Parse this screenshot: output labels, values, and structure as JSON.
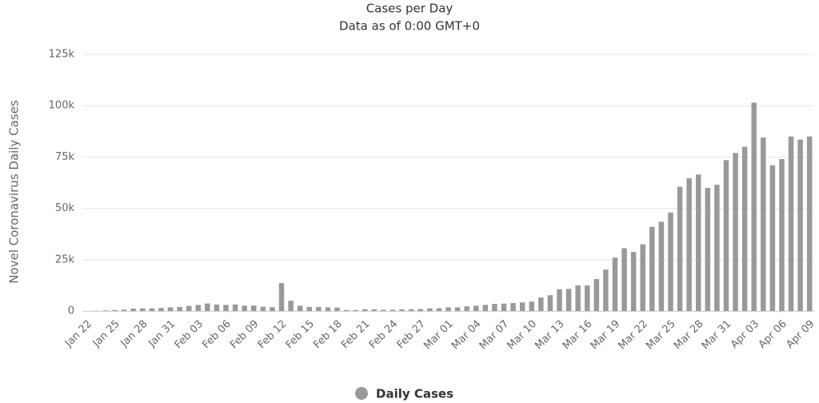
{
  "chart_data": {
    "type": "bar",
    "title": "Cases per Day",
    "subtitle": "Data as of 0:00 GMT+0",
    "y_label": "Novel Coronavirus Daily Cases",
    "legend": "bottom",
    "categories": [
      "Jan 22",
      null,
      null,
      "Jan 25",
      null,
      null,
      "Jan 28",
      null,
      null,
      "Jan 31",
      null,
      null,
      "Feb 03",
      null,
      null,
      "Feb 06",
      null,
      null,
      "Feb 09",
      null,
      null,
      "Feb 12",
      null,
      null,
      "Feb 15",
      null,
      null,
      "Feb 18",
      null,
      null,
      "Feb 21",
      null,
      null,
      "Feb 24",
      null,
      null,
      "Feb 27",
      null,
      null,
      "Mar 01",
      null,
      null,
      "Mar 04",
      null,
      null,
      "Mar 07",
      null,
      null,
      "Mar 10",
      null,
      null,
      "Mar 13",
      null,
      null,
      "Mar 16",
      null,
      null,
      "Mar 19",
      null,
      null,
      "Mar 22",
      null,
      null,
      "Mar 25",
      null,
      null,
      "Mar 28",
      null,
      null,
      "Mar 31",
      null,
      null,
      "Apr 03",
      null,
      null,
      "Apr 06",
      null,
      null,
      "Apr 09"
    ],
    "series": [
      {
        "name": "Daily Cases",
        "color": "#999999",
        "values": [
          0,
          100,
          300,
          500,
          700,
          1200,
          1300,
          1300,
          1500,
          1800,
          2000,
          2500,
          3000,
          3700,
          3200,
          3000,
          3200,
          2600,
          2700,
          2100,
          1900,
          13600,
          5000,
          2600,
          2000,
          2000,
          1800,
          1700,
          500,
          500,
          900,
          800,
          600,
          600,
          800,
          900,
          1000,
          1300,
          1400,
          1800,
          1800,
          2300,
          2600,
          3000,
          3500,
          3600,
          3900,
          4200,
          4600,
          6600,
          7700,
          10600,
          10800,
          12500,
          12500,
          15600,
          20200,
          26000,
          30600,
          28800,
          32500,
          41000,
          43500,
          48000,
          60500,
          64700,
          66500,
          60000,
          61500,
          73500,
          77000,
          80000,
          101500,
          84500,
          71000,
          74000,
          85000,
          83500,
          85000
        ]
      }
    ],
    "ylim": [
      0,
      125000
    ],
    "yticks": [
      0,
      {
        "value": 25000,
        "label": "25k"
      },
      {
        "value": 50000,
        "label": "50k"
      },
      {
        "value": 75000,
        "label": "75k"
      },
      {
        "value": 100000,
        "label": "100k"
      },
      {
        "value": 125000,
        "label": "125k"
      }
    ],
    "grid": true
  }
}
